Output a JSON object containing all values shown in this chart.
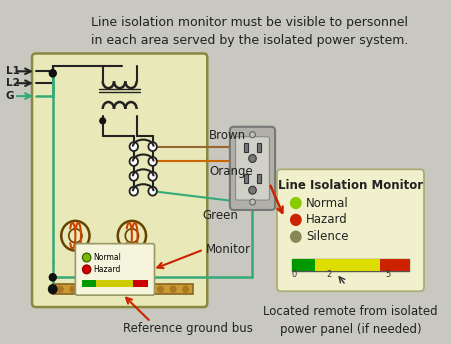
{
  "bg_color": "#c8c8c0",
  "panel_color": "#e8e8b8",
  "panel_border": "#888840",
  "title_text": "Line isolation monitor must be visible to personnel\nin each area served by the isolated power system.",
  "title_fontsize": 9.0,
  "wire_black": "#222222",
  "wire_green": "#33aa77",
  "wire_brown": "#996633",
  "wire_orange": "#cc6600",
  "brown_label": "Brown",
  "orange_label": "Orange",
  "green_label": "Green",
  "monitor_label": "Monitor",
  "ref_ground_label": "Reference ground bus",
  "lim_title": "Line Isolation Monitor",
  "lim_labels": [
    "Normal",
    "Hazard",
    "Silence"
  ],
  "lim_dot_colors": [
    "#88cc00",
    "#cc2200",
    "#888855"
  ],
  "located_text": "Located remote from isolated\npower panel (if needed)",
  "transformer_color": "#222222",
  "outlet_body_color": "#b0b0a8",
  "lim_box_color": "#f0f0cc",
  "lim_box_border": "#aaa870",
  "monitor_inner_color": "#f5f5dd",
  "ground_bus_color": "#cc9933",
  "arrow_color": "#cc2200"
}
